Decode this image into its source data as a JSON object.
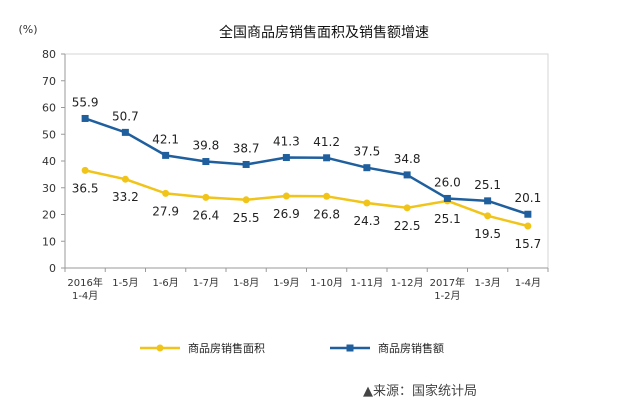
{
  "chart_data": {
    "type": "line",
    "title": "全国商品房销售面积及销售额增速",
    "ylabel": "(%)",
    "xlabel": "",
    "ylim": [
      0,
      80
    ],
    "yticks": [
      "0",
      "10",
      "20",
      "30",
      "40",
      "50",
      "60",
      "70",
      "80"
    ],
    "grid": false,
    "legend_position": "bottom",
    "categories": [
      [
        "2016年",
        "1-4月"
      ],
      [
        "1-5月"
      ],
      [
        "1-6月"
      ],
      [
        "1-7月"
      ],
      [
        "1-8月"
      ],
      [
        "1-9月"
      ],
      [
        "1-10月"
      ],
      [
        "1-11月"
      ],
      [
        "1-12月"
      ],
      [
        "2017年",
        "1-2月"
      ],
      [
        "1-3月"
      ],
      [
        "1-4月"
      ]
    ],
    "series": [
      {
        "name": "商品房销售面积",
        "color": "#f0c419",
        "marker": "circle",
        "values": [
          36.5,
          33.2,
          27.9,
          26.4,
          25.5,
          26.9,
          26.8,
          24.3,
          22.5,
          25.1,
          19.5,
          15.7
        ],
        "labels": [
          "36.5",
          "33.2",
          "27.9",
          "26.4",
          "25.5",
          "26.9",
          "26.8",
          "24.3",
          "22.5",
          "25.1",
          "19.5",
          "15.7"
        ]
      },
      {
        "name": "商品房销售额",
        "color": "#1f5f9e",
        "marker": "square",
        "values": [
          55.9,
          50.7,
          42.1,
          39.8,
          38.7,
          41.3,
          41.2,
          37.5,
          34.8,
          26.0,
          25.1,
          20.1
        ],
        "labels": [
          "55.9",
          "50.7",
          "42.1",
          "39.8",
          "38.7",
          "41.3",
          "41.2",
          "37.5",
          "34.8",
          "26.0",
          "25.1",
          "20.1"
        ]
      }
    ]
  },
  "footer": {
    "source": "▲来源：国家统计局"
  }
}
